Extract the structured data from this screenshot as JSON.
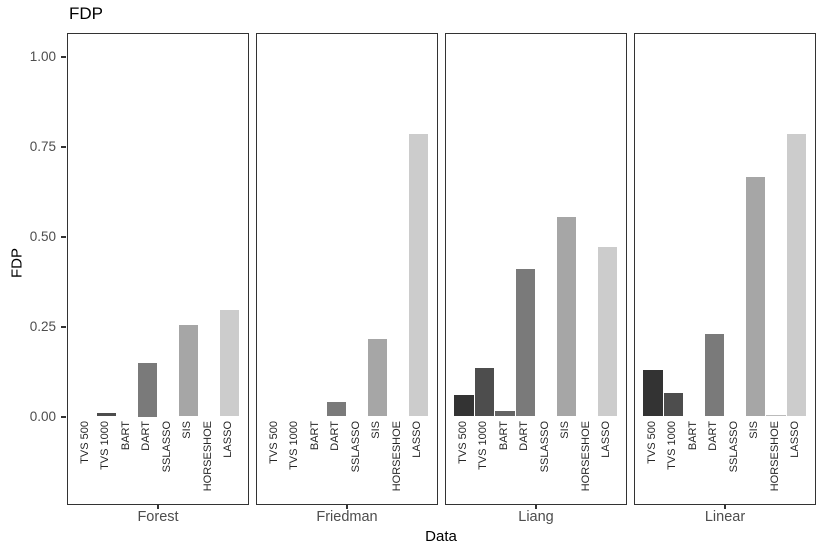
{
  "chart_data": {
    "type": "bar",
    "title": "FDP",
    "xlabel": "Data",
    "ylabel": "FDP",
    "ylim": [
      0,
      1.05
    ],
    "grid": false,
    "legend": "none",
    "facet_variable": "Data",
    "yticks": [
      {
        "value": 0.0,
        "label": "0.00"
      },
      {
        "value": 0.25,
        "label": "0.25"
      },
      {
        "value": 0.5,
        "label": "0.50"
      },
      {
        "value": 0.75,
        "label": "0.75"
      },
      {
        "value": 1.0,
        "label": "1.00"
      }
    ],
    "categories": [
      "TVS 500",
      "TVS 1000",
      "BART",
      "DART",
      "SSLASSO",
      "SIS",
      "HORSESHOE",
      "LASSO"
    ],
    "bar_colors": [
      "#333333",
      "#4d4d4d",
      "#646464",
      "#7a7a7a",
      "#909090",
      "#a6a6a6",
      "#bbbbbb",
      "#cccccc"
    ],
    "series": [
      {
        "name": "Forest",
        "values": [
          0,
          0.01,
          0,
          0.15,
          0,
          0.255,
          0,
          0.295
        ]
      },
      {
        "name": "Friedman",
        "values": [
          0,
          0,
          0,
          0.04,
          0,
          0.215,
          0,
          0.785
        ]
      },
      {
        "name": "Liang",
        "values": [
          0.06,
          0.135,
          0.015,
          0.41,
          0,
          0.555,
          0,
          0.47
        ]
      },
      {
        "name": "Linear",
        "values": [
          0.13,
          0.065,
          0,
          0.23,
          0,
          0.665,
          0.005,
          0.785
        ]
      }
    ]
  },
  "style": {
    "panel_border_color": "#333333",
    "tick_color": "#333333",
    "ytick_label_color": "#4d4d4d",
    "facet_label_color": "#4d4d4d",
    "bar_label_color": "#262626"
  }
}
